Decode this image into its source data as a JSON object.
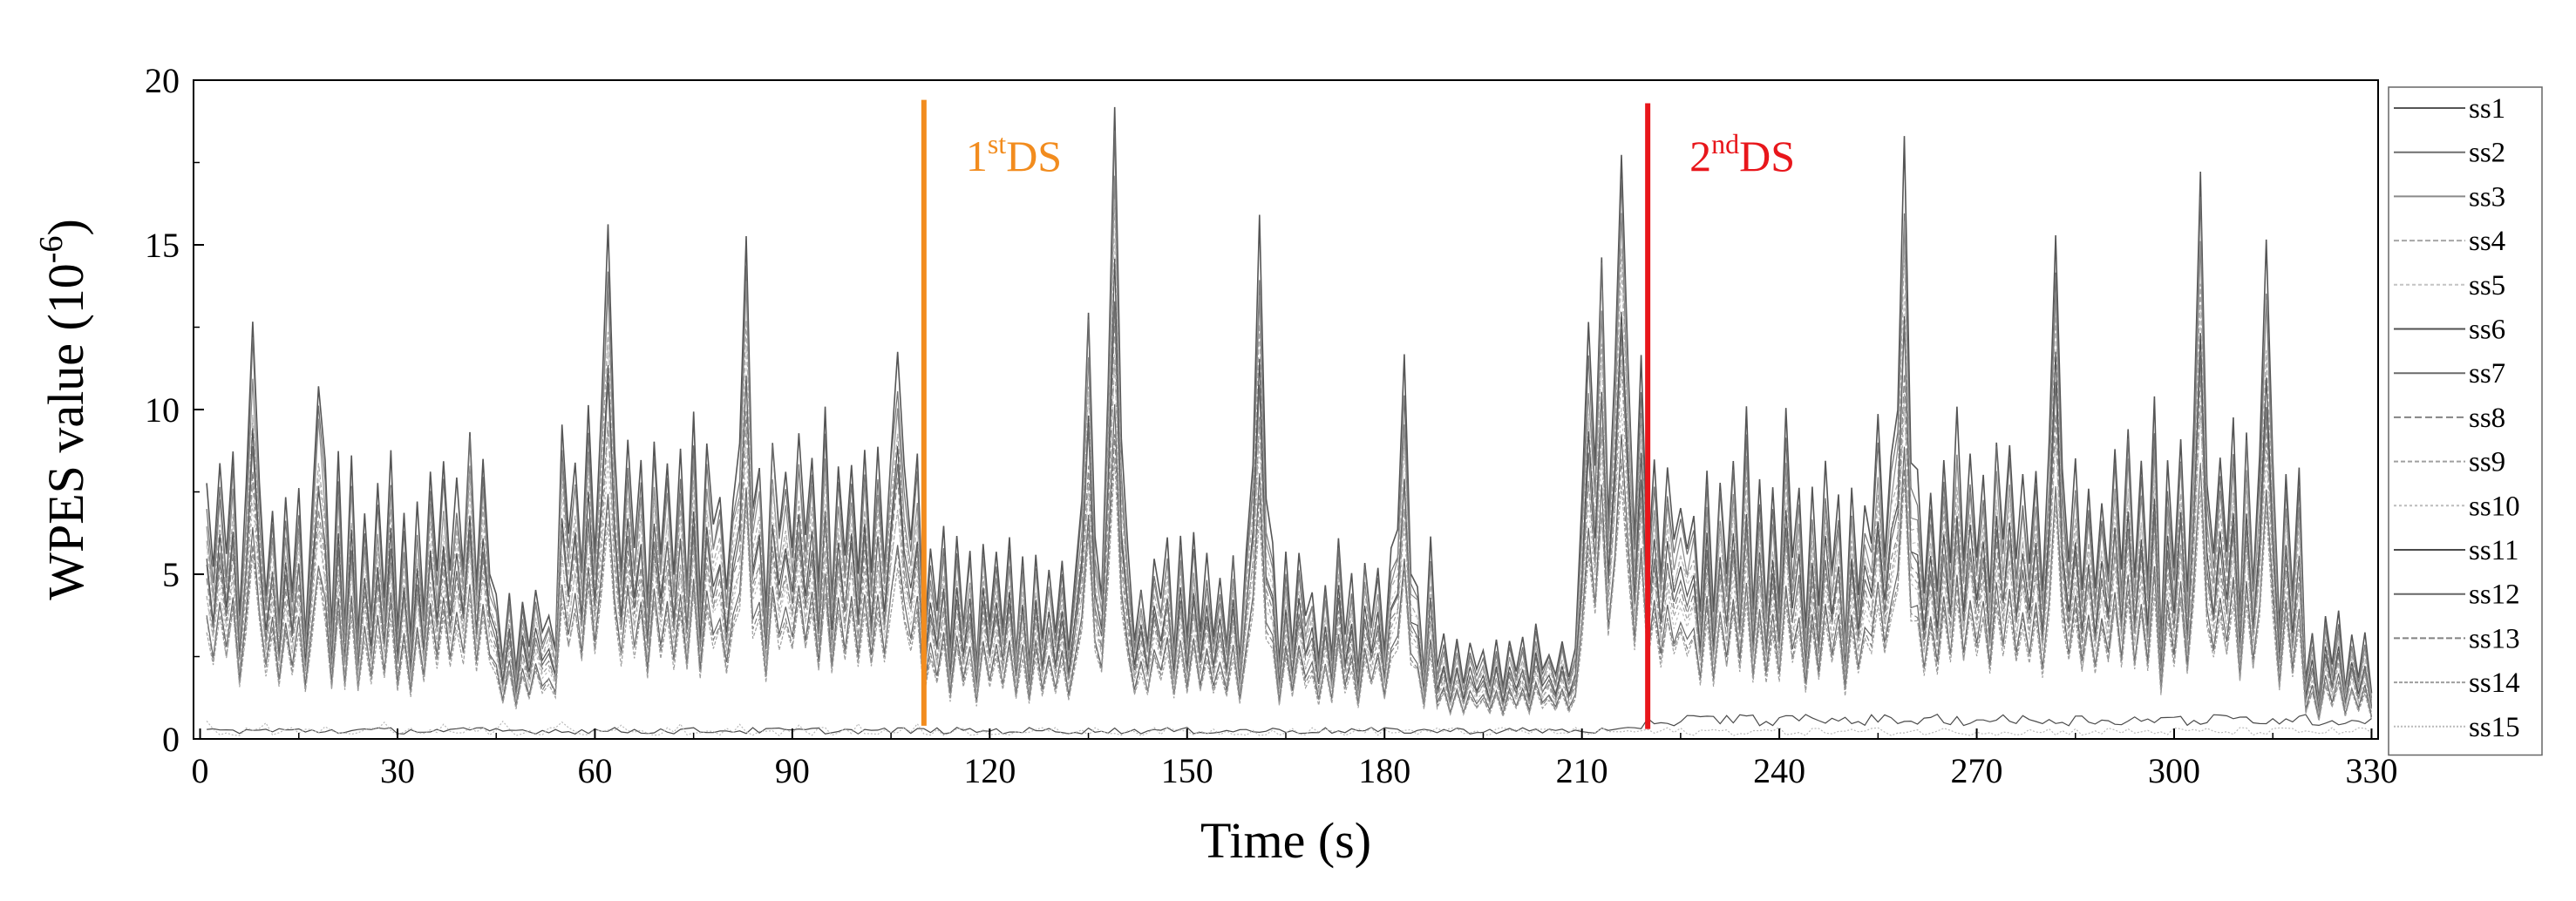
{
  "chart_data": {
    "type": "line",
    "title": "",
    "xlabel": "Time (s)",
    "ylabel_main": "WPES value (10",
    "ylabel_sup": "-6",
    "ylabel_tail": ")",
    "xlim": [
      -1,
      331
    ],
    "ylim": [
      0,
      20
    ],
    "xticks": [
      0,
      30,
      60,
      90,
      120,
      150,
      180,
      210,
      240,
      270,
      300,
      330
    ],
    "yticks": [
      0,
      5,
      10,
      15,
      20
    ],
    "grid": false,
    "legend_position": "right",
    "legend": [
      "ss1",
      "ss2",
      "ss3",
      "ss4",
      "ss5",
      "ss6",
      "ss7",
      "ss8",
      "ss9",
      "ss10",
      "ss11",
      "ss12",
      "ss13",
      "ss14",
      "ss15"
    ],
    "series_colors": [
      "#555555",
      "#6f6f6f",
      "#8a8a8a",
      "#a6a6a6",
      "#c4c4c4",
      "#505050",
      "#6a6a6a",
      "#848484",
      "#a0a0a0",
      "#bcbcbc",
      "#4a4a4a",
      "#666666",
      "#828282",
      "#9e9e9e",
      "#bababa"
    ],
    "events": [
      {
        "x": 110,
        "label_main": "1",
        "label_sup": "st",
        "label_tail": "DS",
        "color": "#f28c1e",
        "y_top": 19.4,
        "y_bottom": 0.4
      },
      {
        "x": 220,
        "label_main": "2",
        "label_sup": "nd",
        "label_tail": "DS",
        "color": "#e8161b",
        "y_top": 19.3,
        "y_bottom": 0.3
      }
    ],
    "series_summary": {
      "x_start": 1,
      "x_end": 330,
      "segment_boundaries": [
        45,
        55,
        110,
        188,
        210,
        220,
        320
      ],
      "segment_mean_levels_ss1": [
        6.0,
        3.4,
        7.0,
        4.2,
        2.4,
        8.5,
        6.6,
        2.6
      ],
      "peaks_ss1": [
        [
          8,
          12.8
        ],
        [
          18,
          10.9
        ],
        [
          41,
          9.7
        ],
        [
          62,
          15.4
        ],
        [
          83,
          15.8
        ],
        [
          106,
          11.9
        ],
        [
          135,
          13.4
        ],
        [
          139,
          19.8
        ],
        [
          161,
          15.7
        ],
        [
          183,
          11.3
        ],
        [
          213,
          15.2
        ],
        [
          216,
          18.2
        ],
        [
          259,
          18.0
        ],
        [
          282,
          15.8
        ],
        [
          304,
          17.3
        ],
        [
          314,
          15.2
        ]
      ],
      "low_series_level": 0.15
    }
  }
}
